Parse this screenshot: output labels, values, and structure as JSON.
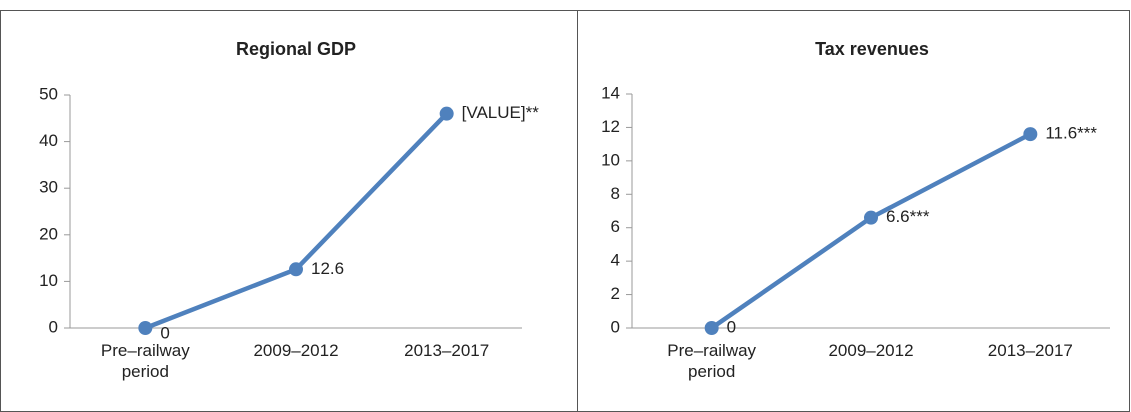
{
  "chart_data": [
    {
      "type": "line",
      "title": "Regional GDP",
      "categories": [
        "Pre–railway period",
        "2009–2012",
        "2013–2017"
      ],
      "values": [
        0,
        12.6,
        46
      ],
      "value_labels": [
        "0",
        "12.6",
        "[VALUE]**"
      ],
      "color": "#4f81bd",
      "ylim": [
        0,
        50
      ],
      "yticks": [
        0,
        10,
        20,
        30,
        40,
        50
      ]
    },
    {
      "type": "line",
      "title": "Tax revenues",
      "categories": [
        "Pre–railway period",
        "2009–2012",
        "2013–2017"
      ],
      "values": [
        0,
        6.6,
        11.6
      ],
      "value_labels": [
        "0",
        "6.6***",
        "11.6***"
      ],
      "color": "#4f81bd",
      "ylim": [
        0,
        14
      ],
      "yticks": [
        0,
        2,
        4,
        6,
        8,
        10,
        12,
        14
      ]
    }
  ]
}
